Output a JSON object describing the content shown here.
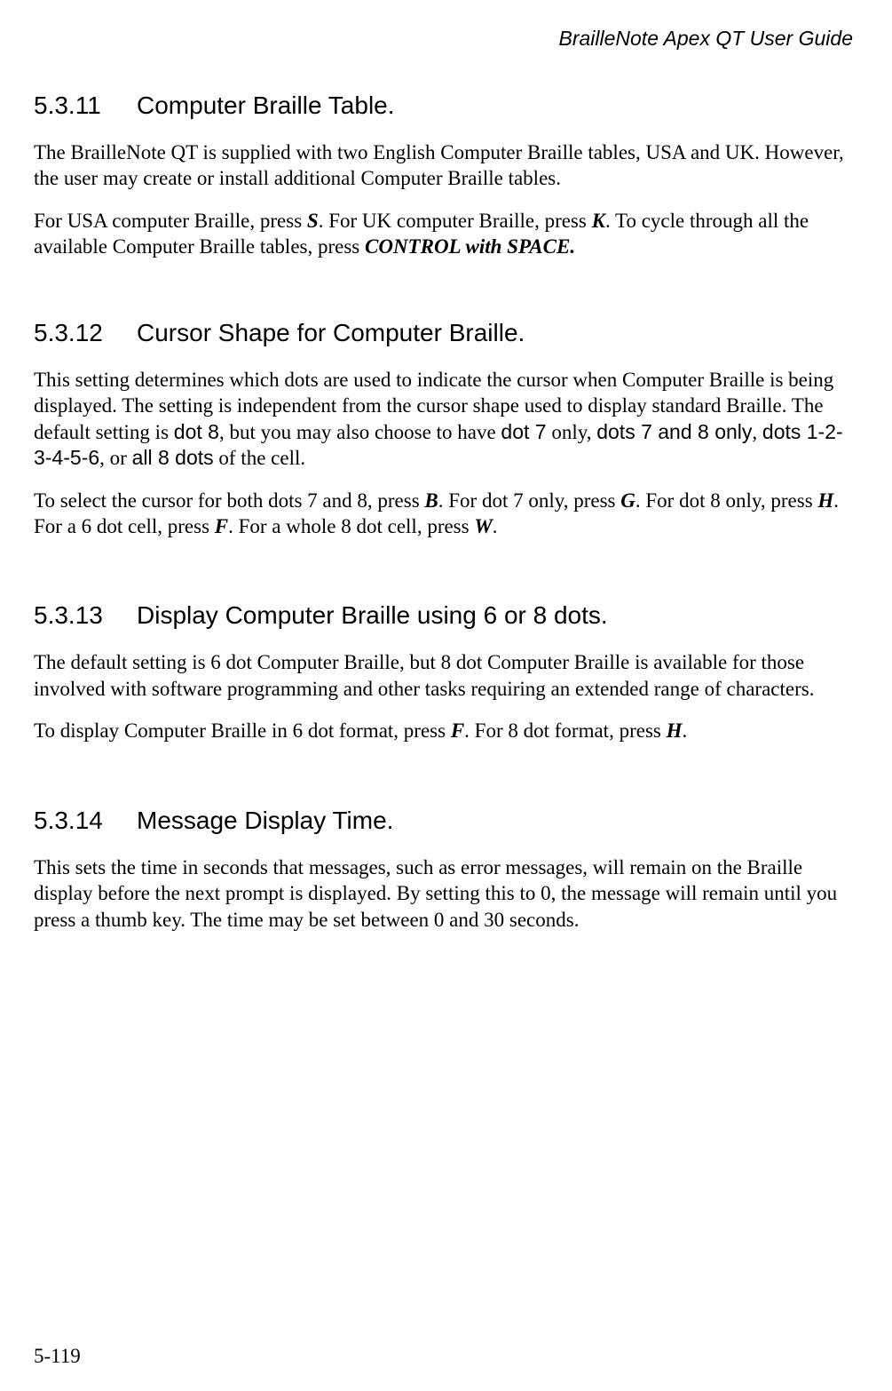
{
  "header": {
    "title": "BrailleNote Apex QT User Guide"
  },
  "footer": {
    "page_number": "5-119"
  },
  "sections": {
    "s1": {
      "number": "5.3.11",
      "title": "Computer Braille Table.",
      "p1_a": "The BrailleNote QT is supplied with two English Computer Braille tables, USA and UK. However, the user may create or install additional Computer Braille tables.",
      "p2_a": "For USA computer Braille, press ",
      "p2_key1": "S",
      "p2_b": ". For UK computer Braille, press ",
      "p2_key2": "K",
      "p2_c": ". To cycle through all the available Computer Braille tables, press ",
      "p2_key3": "CONTROL with SPACE."
    },
    "s2": {
      "number": "5.3.12",
      "title": "Cursor Shape for Computer Braille.",
      "p1_a": "This setting determines which dots are used to indicate the cursor when Computer Braille is being displayed. The setting is independent from the cursor shape used to display standard Braille. The default setting is ",
      "p1_t1": "dot 8",
      "p1_b": ", but you may also choose to have ",
      "p1_t2": "dot 7",
      "p1_c": " only, ",
      "p1_t3": "dots 7 and 8 only",
      "p1_d": ", ",
      "p1_t4": "dots 1-2-3-4-5-6",
      "p1_e": ", or ",
      "p1_t5": "all 8 dots",
      "p1_f": " of the cell.",
      "p2_a": "To select the cursor for both dots 7 and 8, press ",
      "p2_k1": "B",
      "p2_b": ". For dot 7 only, press ",
      "p2_k2": "G",
      "p2_c": ". For dot 8 only, press ",
      "p2_k3": "H",
      "p2_d": ". For a 6 dot cell, press ",
      "p2_k4": "F",
      "p2_e": ". For a whole 8 dot cell, press ",
      "p2_k5": "W",
      "p2_f": "."
    },
    "s3": {
      "number": "5.3.13",
      "title": "Display Computer Braille using 6 or 8 dots.",
      "p1": "The default setting is 6 dot Computer Braille, but 8 dot Computer Braille is available for those involved with software programming and other tasks requiring an extended range of characters.",
      "p2_a": "To display Computer Braille in 6 dot format, press ",
      "p2_k1": "F",
      "p2_b": ". For 8 dot format, press ",
      "p2_k2": "H",
      "p2_c": "."
    },
    "s4": {
      "number": "5.3.14",
      "title": "Message Display Time.",
      "p1": "This sets the time in seconds that messages, such as error messages, will remain on the Braille display before the next prompt is displayed. By setting this to 0, the message will remain until you press a thumb key. The time may be set between 0 and 30 seconds."
    }
  }
}
